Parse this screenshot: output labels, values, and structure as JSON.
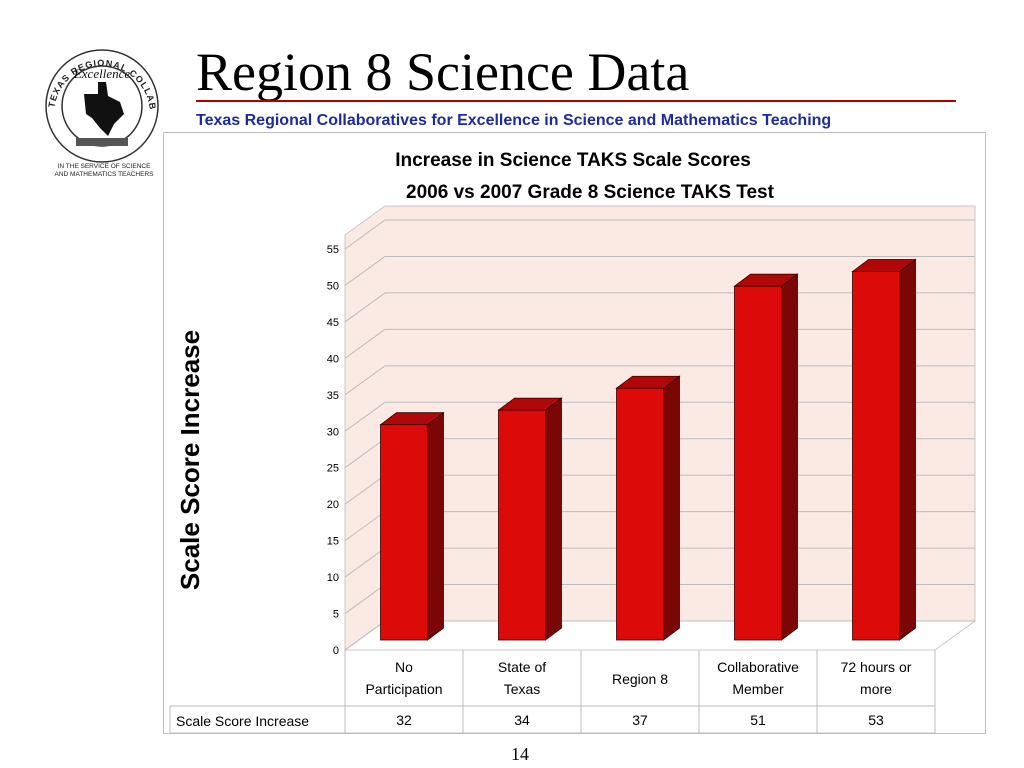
{
  "slide": {
    "title": "Region 8 Science Data",
    "subtitle": "Texas Regional Collaboratives for Excellence in Science and Mathematics Teaching",
    "page_number": "14"
  },
  "logo": {
    "ring_text": "TEXAS REGIONAL COLLABORATIVES",
    "center_text": "Excellence",
    "caption_line1": "IN THE SERVICE OF SCIENCE",
    "caption_line2": "AND MATHEMATICS TEACHERS"
  },
  "colors": {
    "bar_front": "#dd0a0a",
    "bar_side": "#7a0606",
    "bar_top": "#b00808",
    "wall": "#fbe9e4",
    "floor": "#ffffff",
    "subtitle": "#1e2c9a",
    "rule": "#b00000"
  },
  "chart_data": {
    "type": "bar",
    "title": "Increase in Science TAKS Scale Scores",
    "subtitle": "2006 vs 2007 Grade 8 Science TAKS Test",
    "ylabel": "Scale Score Increase",
    "categories": [
      [
        "No",
        "Participation"
      ],
      [
        "State of",
        "Texas"
      ],
      [
        "Region 8"
      ],
      [
        "Collaborative",
        "Member"
      ],
      [
        "72 hours or",
        "more"
      ]
    ],
    "series": [
      {
        "name": "Scale Score Increase",
        "values": [
          32,
          34,
          37,
          51,
          53
        ]
      }
    ],
    "y_ticks": [
      "0",
      "5",
      "10",
      "15",
      "20",
      "25",
      "30",
      "35",
      "40",
      "45",
      "50",
      "55"
    ],
    "ylim": [
      0,
      55
    ],
    "grid": true,
    "legend": "none",
    "three_d": true,
    "data_table": true
  }
}
